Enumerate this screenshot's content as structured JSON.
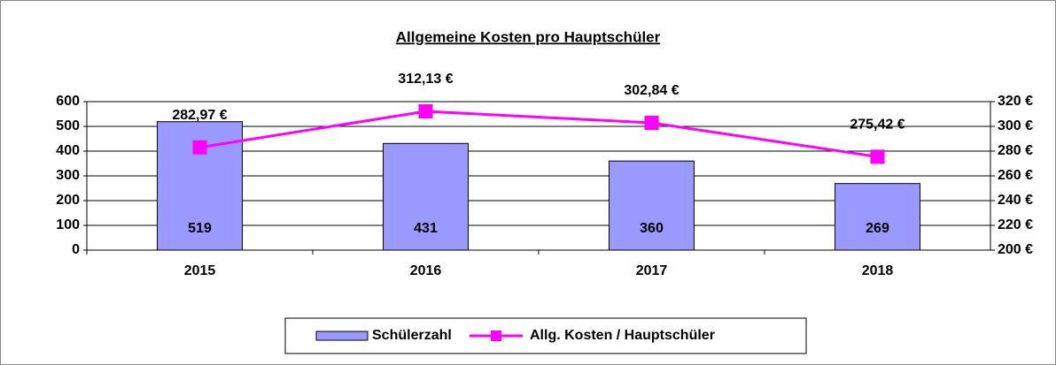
{
  "chart_data": {
    "type": "combo",
    "title": "Allgemeine Kosten pro Hauptschüler",
    "categories": [
      "2015",
      "2016",
      "2017",
      "2018"
    ],
    "series": [
      {
        "name": "Schülerzahl",
        "type": "bar",
        "color": "#9999ff",
        "values": [
          519,
          431,
          360,
          269
        ]
      },
      {
        "name": "Allg. Kosten / Hauptschüler",
        "type": "line",
        "axis": "y2",
        "color": "#ff00ff",
        "values": [
          282.97,
          312.13,
          302.84,
          275.42
        ],
        "value_labels": [
          "282,97 €",
          "312,13 €",
          "302,84 €",
          "275,42 €"
        ]
      }
    ],
    "ylim": [
      0,
      600
    ],
    "yticks": [
      0,
      100,
      200,
      300,
      400,
      500,
      600
    ],
    "y2lim": [
      200,
      320
    ],
    "y2ticks": [
      {
        "value": 200,
        "label": "200 €"
      },
      {
        "value": 220,
        "label": "220 €"
      },
      {
        "value": 240,
        "label": "240 €"
      },
      {
        "value": 260,
        "label": "260 €"
      },
      {
        "value": 280,
        "label": "280 €"
      },
      {
        "value": 300,
        "label": "300 €"
      },
      {
        "value": 320,
        "label": "320 €"
      }
    ],
    "grid": true,
    "legend": "bottom"
  }
}
